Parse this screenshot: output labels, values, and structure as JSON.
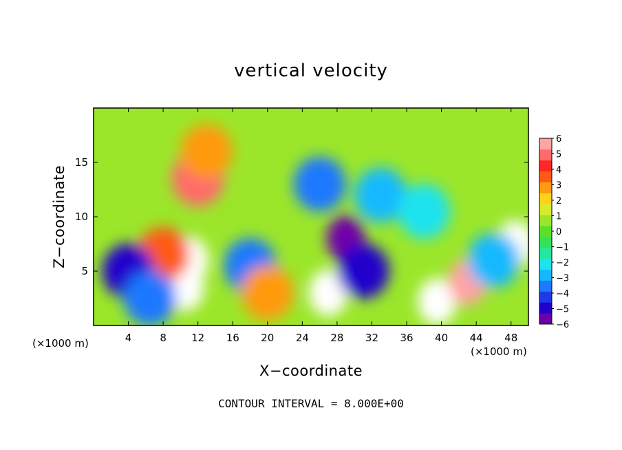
{
  "chart_data": {
    "type": "heatmap",
    "title": "vertical velocity",
    "xlabel": "X−coordinate",
    "ylabel": "Z−coordinate",
    "x_unit_label": "(×1000 m)",
    "y_unit_label": "(×1000 m)",
    "footer": "CONTOUR INTERVAL = 8.000E+00",
    "xlim": [
      0,
      50
    ],
    "ylim": [
      0,
      20
    ],
    "x_ticks": [
      4,
      8,
      12,
      16,
      20,
      24,
      28,
      32,
      36,
      40,
      44,
      48
    ],
    "y_ticks": [
      5,
      10,
      15
    ],
    "colorbar": {
      "ticks": [
        "6",
        "5",
        "4",
        "3",
        "2",
        "1",
        "0",
        "−1",
        "−2",
        "−3",
        "−4",
        "−5",
        "−6"
      ],
      "range": [
        -6,
        6
      ],
      "colors": [
        "#6f00a8",
        "#2200cc",
        "#1e3ae6",
        "#1f78ff",
        "#13b9ff",
        "#1ee3ee",
        "#24e8a0",
        "#35e05a",
        "#5be02a",
        "#9be62a",
        "#d8ec2a",
        "#ffd21a",
        "#ff9a10",
        "#ff5a14",
        "#ff2626",
        "#ff6b6b",
        "#ffa3a3"
      ]
    },
    "features": [
      {
        "x": 12,
        "z": 13.5,
        "value": 5
      },
      {
        "x": 13,
        "z": 16,
        "value": 3
      },
      {
        "x": 11,
        "z": 6,
        "value": 7
      },
      {
        "x": 10.5,
        "z": 3.5,
        "value": 8
      },
      {
        "x": 8,
        "z": 6.5,
        "value": 4
      },
      {
        "x": 4,
        "z": 5,
        "value": -5
      },
      {
        "x": 6.5,
        "z": 2.5,
        "value": -4
      },
      {
        "x": 18,
        "z": 5.5,
        "value": -4
      },
      {
        "x": 20,
        "z": 3,
        "value": 3
      },
      {
        "x": 26,
        "z": 13,
        "value": -4
      },
      {
        "x": 29,
        "z": 8,
        "value": -6
      },
      {
        "x": 27,
        "z": 3,
        "value": 7
      },
      {
        "x": 31,
        "z": 5,
        "value": -5
      },
      {
        "x": 33,
        "z": 12,
        "value": -3
      },
      {
        "x": 39.5,
        "z": 2.2,
        "value": 8
      },
      {
        "x": 43,
        "z": 4,
        "value": 6
      },
      {
        "x": 48.5,
        "z": 7.5,
        "value": 7
      },
      {
        "x": 46,
        "z": 6,
        "value": -3
      },
      {
        "x": 38,
        "z": 10.5,
        "value": -2
      }
    ]
  }
}
